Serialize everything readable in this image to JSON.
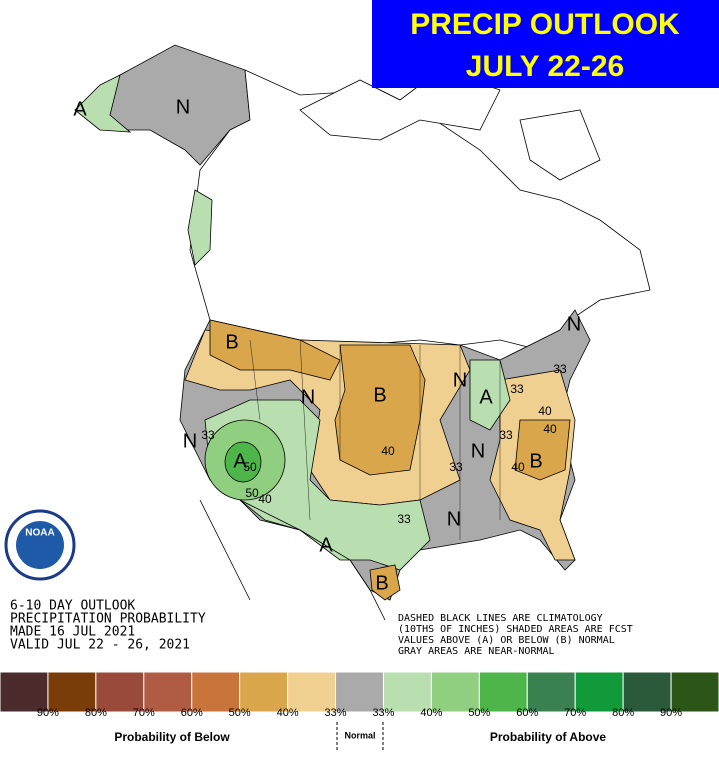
{
  "header": {
    "title": "PRECIP OUTLOOK",
    "subtitle": "JULY 22-26"
  },
  "map_labels": [
    "N",
    "A",
    "B",
    "N",
    "33",
    "A",
    "50",
    "50",
    "40",
    "N",
    "B",
    "40",
    "N",
    "A",
    "33",
    "33",
    "40",
    "33",
    "N",
    "33",
    "40",
    "B",
    "N",
    "33",
    "A",
    "B",
    "N",
    "40"
  ],
  "logo": "NOAA",
  "info_left": [
    "6-10 DAY OUTLOOK",
    "PRECIPITATION PROBABILITY",
    "MADE  16 JUL 2021",
    "VALID  JUL 22 - 26, 2021"
  ],
  "info_right": [
    "DASHED BLACK LINES ARE CLIMATOLOGY",
    "(10THS OF INCHES) SHADED AREAS ARE FCST",
    "VALUES ABOVE (A) OR BELOW (B) NORMAL",
    "GRAY AREAS ARE NEAR-NORMAL"
  ],
  "legend": {
    "colors": [
      "#4b2b2b",
      "#7a3d0a",
      "#9a4a3a",
      "#b05c44",
      "#c8743a",
      "#d9a64c",
      "#f0d090",
      "#aaaaaa",
      "#b9dfb0",
      "#90cf80",
      "#4db54a",
      "#3a8050",
      "#109a3a",
      "#2a5a3a",
      "#2c5518"
    ],
    "labels": [
      "90%",
      "80%",
      "70%",
      "60%",
      "50%",
      "40%",
      "33%",
      "33%",
      "40%",
      "50%",
      "60%",
      "70%",
      "80%",
      "90%"
    ],
    "below": "Probability of Below",
    "normal": "Normal",
    "above": "Probability of Above"
  }
}
